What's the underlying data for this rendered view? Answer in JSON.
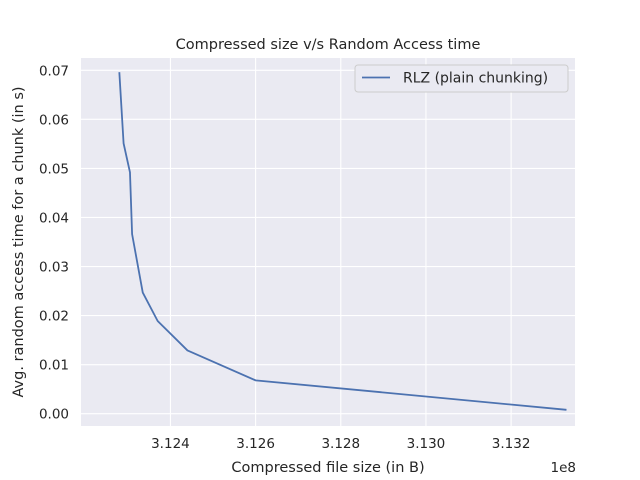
{
  "chart_data": {
    "type": "line",
    "title": "Compressed size v/s Random Access time",
    "xlabel": "Compressed file size (in B)",
    "ylabel": "Avg. random access time for a chunk (in s)",
    "x_offset_label": "1e8",
    "x_scale_factor": 100000000,
    "xlim": [
      3.1219,
      3.1335
    ],
    "ylim": [
      -0.0025,
      0.0725
    ],
    "x_ticks": [
      3.124,
      3.126,
      3.128,
      3.13,
      3.132
    ],
    "x_tick_labels": [
      "3.124",
      "3.126",
      "3.128",
      "3.130",
      "3.132"
    ],
    "y_ticks": [
      0.0,
      0.01,
      0.02,
      0.03,
      0.04,
      0.05,
      0.06,
      0.07
    ],
    "y_tick_labels": [
      "0.00",
      "0.01",
      "0.02",
      "0.03",
      "0.04",
      "0.05",
      "0.06",
      "0.07"
    ],
    "grid": true,
    "legend_position": "top-right",
    "series": [
      {
        "name": "RLZ (plain chunking)",
        "color": "#4c72b0",
        "x": [
          312280000,
          312290000,
          312305000,
          312310000,
          312335000,
          312370000,
          312440000,
          312600000,
          313330000
        ],
        "y": [
          0.0696,
          0.0551,
          0.0492,
          0.0366,
          0.0247,
          0.0189,
          0.0129,
          0.0068,
          0.0008
        ]
      }
    ]
  }
}
